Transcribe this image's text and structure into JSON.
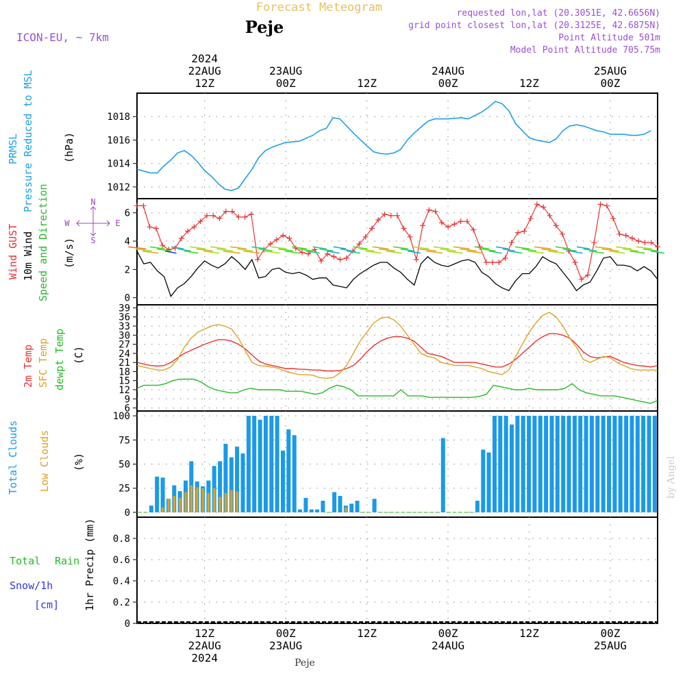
{
  "header": {
    "title": "Forecast Meteogram",
    "location": "Peje",
    "model": "ICON-EU, ~ 7km",
    "requested": "requested lon,lat (20.3051E, 42.6656N)",
    "grid": "grid point closest lon,lat (20.3125E, 42.6875N)",
    "point_alt": "Point Altitude 501m",
    "model_alt": "Model Point Altitude 705.75m",
    "footer_location": "Peje",
    "watermark": "by Angel"
  },
  "colors": {
    "pressure": "#1aa0e8",
    "gust": "#e83030",
    "wind": "#000000",
    "wind_dir": "#22bb22",
    "temp": "#e83030",
    "sfc_temp": "#e0a020",
    "dewpt": "#22bb22",
    "total_clouds": "#1a9ae8",
    "low_clouds": "#e0a020",
    "rain": "#22bb22",
    "snow": "#3333ee",
    "compass": "#a040c0",
    "header_purple": "#9a4fd6",
    "title_gold": "#e8c060"
  },
  "time_axis": {
    "top_ticks": [
      {
        "x": 10,
        "lines": [
          "2024",
          "22AUG",
          "12Z"
        ]
      },
      {
        "x": 22,
        "lines": [
          "23AUG",
          "00Z"
        ]
      },
      {
        "x": 34,
        "lines": [
          "12Z"
        ]
      },
      {
        "x": 46,
        "lines": [
          "24AUG",
          "00Z"
        ]
      },
      {
        "x": 58,
        "lines": [
          "12Z"
        ]
      },
      {
        "x": 70,
        "lines": [
          "25AUG",
          "00Z"
        ]
      }
    ],
    "bottom_ticks": [
      {
        "x": 10,
        "lines": [
          "12Z",
          "22AUG",
          "2024"
        ]
      },
      {
        "x": 22,
        "lines": [
          "00Z",
          "23AUG"
        ]
      },
      {
        "x": 34,
        "lines": [
          "12Z"
        ]
      },
      {
        "x": 46,
        "lines": [
          "00Z",
          "24AUG"
        ]
      },
      {
        "x": 58,
        "lines": [
          "12Z"
        ]
      },
      {
        "x": 70,
        "lines": [
          "00Z",
          "25AUG"
        ]
      }
    ]
  },
  "panels": {
    "pressure": {
      "label1": "PRMSL",
      "label2": "Pressure Reduced to MSL",
      "units": "(hPa)"
    },
    "wind": {
      "label1": "Wind GUST",
      "label2": "10m Wind",
      "label3": "Speed and Direction",
      "units": "(m/s)",
      "compass": {
        "n": "N",
        "s": "S",
        "w": "W",
        "e": "E"
      }
    },
    "temp": {
      "label1": "2m Temp",
      "label2": "SFC Temp",
      "label3": "dewpt Temp",
      "units": "(C)"
    },
    "clouds": {
      "label1": "Total Clouds",
      "label2": "Low Clouds",
      "units": "(%)"
    },
    "precip": {
      "label1": "Total",
      "label2": "Rain",
      "label3": "Snow/1h",
      "label4": "[cm]",
      "ylabel": "1hr Precip (mm)"
    }
  },
  "chart_data": [
    {
      "type": "line",
      "title": "Pressure Reduced to MSL",
      "ylabel": "(hPa)",
      "xlim": [
        0,
        77
      ],
      "ylim": [
        1011,
        1020
      ],
      "yticks": [
        1012,
        1014,
        1016,
        1018
      ],
      "series": [
        {
          "name": "PRMSL",
          "x": [
            0,
            2,
            3,
            4,
            5,
            6,
            7,
            8,
            9,
            10,
            11,
            12,
            13,
            14,
            15,
            16,
            17,
            18,
            19,
            20,
            21,
            22,
            24,
            26,
            27,
            28,
            29,
            30,
            31,
            32,
            34,
            35,
            36,
            37,
            38,
            39,
            40,
            41,
            42,
            43,
            44,
            45,
            46,
            48,
            49,
            50,
            51,
            52,
            53,
            54,
            55,
            56,
            57,
            58,
            59,
            60,
            61,
            62,
            63,
            64,
            65,
            66,
            67,
            68,
            69,
            70,
            71,
            72,
            73,
            74,
            75,
            76
          ],
          "values": [
            1013.5,
            1013.2,
            1013.2,
            1013.8,
            1014.3,
            1014.9,
            1015.1,
            1014.7,
            1014.1,
            1013.4,
            1012.9,
            1012.3,
            1011.8,
            1011.7,
            1011.9,
            1012.7,
            1013.5,
            1014.5,
            1015.1,
            1015.4,
            1015.6,
            1015.8,
            1015.9,
            1016.4,
            1016.8,
            1017.0,
            1017.9,
            1017.8,
            1017.2,
            1016.6,
            1015.5,
            1015.0,
            1014.85,
            1014.8,
            1014.9,
            1015.2,
            1016.0,
            1016.6,
            1017.1,
            1017.6,
            1017.8,
            1017.8,
            1017.8,
            1017.9,
            1017.8,
            1018.1,
            1018.4,
            1018.8,
            1019.3,
            1019.1,
            1018.5,
            1017.4,
            1016.8,
            1016.2,
            1016.0,
            1015.9,
            1015.8,
            1016.1,
            1016.8,
            1017.2,
            1017.3,
            1017.2,
            1017.0,
            1016.8,
            1016.7,
            1016.5,
            1016.5,
            1016.5,
            1016.4,
            1016.4,
            1016.5,
            1016.8
          ]
        }
      ]
    },
    {
      "type": "line",
      "title": "Wind GUST / 10m Wind Speed and Direction",
      "ylabel": "(m/s)",
      "xlim": [
        0,
        77
      ],
      "ylim": [
        -0.5,
        7
      ],
      "yticks": [
        0,
        2,
        4,
        6
      ],
      "series": [
        {
          "name": "Wind GUST",
          "values": [
            6.5,
            6.5,
            5.0,
            4.9,
            3.7,
            3.4,
            3.5,
            4.2,
            4.7,
            5.0,
            5.4,
            5.8,
            5.8,
            5.6,
            6.1,
            6.1,
            5.7,
            5.7,
            5.9,
            2.7,
            3.4,
            3.8,
            4.1,
            4.4,
            4.2,
            3.5,
            3.2,
            3.1,
            3.4,
            2.6,
            3.1,
            2.9,
            2.7,
            2.8,
            3.3,
            3.8,
            4.3,
            4.9,
            5.5,
            5.9,
            5.8,
            5.8,
            4.9,
            4.3,
            2.7,
            5.1,
            6.2,
            6.1,
            5.3,
            5.0,
            5.2,
            5.4,
            5.4,
            4.8,
            3.6,
            2.5,
            2.5,
            2.5,
            2.8,
            3.9,
            4.6,
            4.7,
            5.6,
            6.6,
            6.4,
            5.8,
            5.1,
            4.5,
            3.3,
            2.5,
            1.3,
            1.6,
            3.9,
            6.6,
            6.5,
            5.6,
            4.5,
            4.4,
            4.2,
            4.0,
            3.9,
            3.9,
            3.6
          ]
        },
        {
          "name": "10m Wind",
          "values": [
            3.3,
            2.4,
            2.5,
            1.9,
            1.5,
            0.1,
            0.7,
            1.0,
            1.5,
            2.1,
            2.6,
            2.3,
            2.1,
            2.4,
            2.9,
            2.5,
            2.0,
            2.7,
            1.4,
            1.5,
            2.0,
            2.1,
            1.8,
            1.7,
            1.8,
            1.6,
            1.3,
            1.4,
            1.4,
            0.9,
            0.8,
            0.7,
            1.3,
            1.7,
            2.0,
            2.3,
            2.5,
            2.5,
            2.1,
            1.8,
            1.3,
            0.9,
            2.4,
            2.9,
            2.5,
            2.3,
            2.2,
            2.4,
            2.6,
            2.7,
            2.5,
            1.8,
            1.5,
            1.0,
            0.7,
            0.5,
            1.2,
            1.7,
            1.7,
            2.2,
            2.9,
            2.6,
            2.4,
            1.8,
            1.2,
            0.5,
            0.9,
            1.1,
            1.9,
            2.8,
            2.9,
            2.3,
            2.3,
            2.2,
            1.9,
            2.2,
            1.9,
            1.3
          ]
        }
      ]
    },
    {
      "type": "line",
      "title": "2m Temp / SFC Temp / dewpt Temp",
      "ylabel": "(C)",
      "xlim": [
        0,
        77
      ],
      "ylim": [
        5,
        40
      ],
      "yticks": [
        6,
        9,
        12,
        15,
        18,
        21,
        24,
        27,
        30,
        33,
        36,
        39
      ],
      "series": [
        {
          "name": "2m Temp",
          "values": [
            21,
            20.5,
            20,
            19.8,
            20,
            21,
            22.5,
            24,
            25,
            26,
            27,
            27.8,
            28.5,
            28.5,
            28,
            27,
            25.5,
            23.5,
            21.5,
            20.5,
            20,
            19.5,
            19,
            19,
            18.8,
            18.7,
            18.5,
            18.5,
            18.2,
            18.2,
            18.3,
            19,
            20,
            22,
            24.5,
            26.5,
            28,
            29,
            29.5,
            29.5,
            29,
            28,
            26,
            24,
            23.5,
            23,
            22,
            21,
            21,
            21,
            21,
            20.5,
            20,
            19.5,
            19.5,
            20.5,
            22,
            24,
            26,
            28,
            29.5,
            30.5,
            30.5,
            30,
            29,
            27,
            24.5,
            23,
            22.5,
            22.8,
            23,
            22,
            21,
            20.5,
            20,
            19.8,
            19.5,
            20
          ]
        },
        {
          "name": "SFC Temp",
          "values": [
            20,
            19.5,
            19,
            18.5,
            18.5,
            19.5,
            22,
            26,
            29,
            31,
            32,
            33,
            33.5,
            33,
            32,
            29,
            25,
            21,
            20,
            19.8,
            19.5,
            19,
            18,
            17.5,
            17,
            17,
            16.8,
            16,
            15.8,
            16,
            17.5,
            20,
            24,
            28,
            31,
            34,
            35.5,
            36,
            35,
            33,
            30,
            27,
            24,
            23,
            22.5,
            21,
            20.5,
            20,
            20,
            20,
            19.5,
            19,
            18,
            17.5,
            17,
            18.5,
            23,
            27,
            31,
            34,
            36.5,
            37.5,
            36,
            33,
            29,
            26,
            22,
            21,
            22,
            23,
            22.5,
            21,
            20,
            19,
            18.5,
            18.5,
            18.5,
            18.5
          ]
        },
        {
          "name": "dewpt Temp",
          "values": [
            12.5,
            13.5,
            13.5,
            13.5,
            14,
            15,
            15.5,
            15.5,
            15.5,
            14.5,
            13,
            12,
            11.5,
            11,
            11,
            12,
            12.5,
            12,
            12,
            12,
            12,
            11.5,
            11.5,
            11.5,
            11,
            10.5,
            11,
            12.5,
            13.5,
            13,
            12,
            10,
            10,
            10,
            10,
            10,
            10,
            12,
            10,
            10,
            10,
            9.5,
            9.5,
            9.5,
            9.5,
            9.5,
            9.5,
            9.5,
            9.8,
            10.5,
            13.5,
            13,
            12.5,
            12,
            12,
            12.5,
            12,
            12,
            12,
            12,
            12.5,
            14,
            12,
            11,
            10.5,
            10,
            10,
            10,
            9.5,
            9,
            8.5,
            8,
            7.5,
            8.5
          ]
        }
      ]
    },
    {
      "type": "bar",
      "title": "Total Clouds / Low Clouds",
      "ylabel": "(%)",
      "xlim": [
        0,
        77
      ],
      "ylim": [
        -5,
        105
      ],
      "yticks": [
        0,
        25,
        50,
        75,
        100
      ],
      "series": [
        {
          "name": "Total Clouds",
          "values": [
            0,
            0,
            7,
            37,
            36,
            14,
            28,
            22,
            33,
            53,
            32,
            27,
            33,
            48,
            53,
            71,
            57,
            68,
            61,
            100,
            100,
            96,
            100,
            100,
            100,
            64,
            86,
            80,
            3,
            15,
            3,
            3,
            12,
            0,
            21,
            17,
            7,
            9,
            12,
            0,
            0,
            14,
            0,
            0,
            0,
            0,
            0,
            0,
            0,
            0,
            0,
            0,
            0,
            77,
            0,
            0,
            0,
            0,
            0,
            12,
            65,
            62,
            100,
            100,
            100,
            91,
            100,
            100,
            100,
            100,
            100,
            100,
            100,
            100,
            100,
            100,
            100,
            100,
            100,
            100,
            100,
            100,
            100,
            100,
            100,
            100,
            100,
            100,
            100,
            100,
            100
          ]
        },
        {
          "name": "Low Clouds",
          "values": [
            0,
            0,
            0,
            0,
            5,
            14,
            17,
            15,
            21,
            28,
            26,
            25,
            20,
            25,
            16,
            20,
            23,
            22,
            0,
            0,
            0,
            0,
            0,
            0,
            0,
            0,
            0,
            0,
            0,
            0,
            0,
            0,
            0,
            0,
            0,
            0,
            5,
            0,
            0,
            0,
            0,
            0,
            0,
            0,
            0,
            0,
            0,
            0,
            0,
            0,
            0,
            0,
            0,
            0,
            0,
            0,
            0,
            0,
            0,
            0,
            0,
            0,
            0,
            0,
            0,
            0,
            0,
            0,
            0,
            0,
            0,
            0,
            0,
            0,
            0,
            0,
            0,
            0,
            0,
            0,
            0,
            0,
            0,
            0,
            0,
            0,
            0,
            0,
            0,
            0,
            0
          ]
        }
      ]
    },
    {
      "type": "bar",
      "title": "1hr Precip",
      "ylabel": "1hr Precip (mm)",
      "xlim": [
        0,
        77
      ],
      "ylim": [
        0,
        1
      ],
      "yticks": [
        0,
        0.2,
        0.4,
        0.6,
        0.8
      ],
      "series": [
        {
          "name": "Total Rain",
          "values": []
        },
        {
          "name": "Snow/1h",
          "values": []
        }
      ]
    }
  ]
}
